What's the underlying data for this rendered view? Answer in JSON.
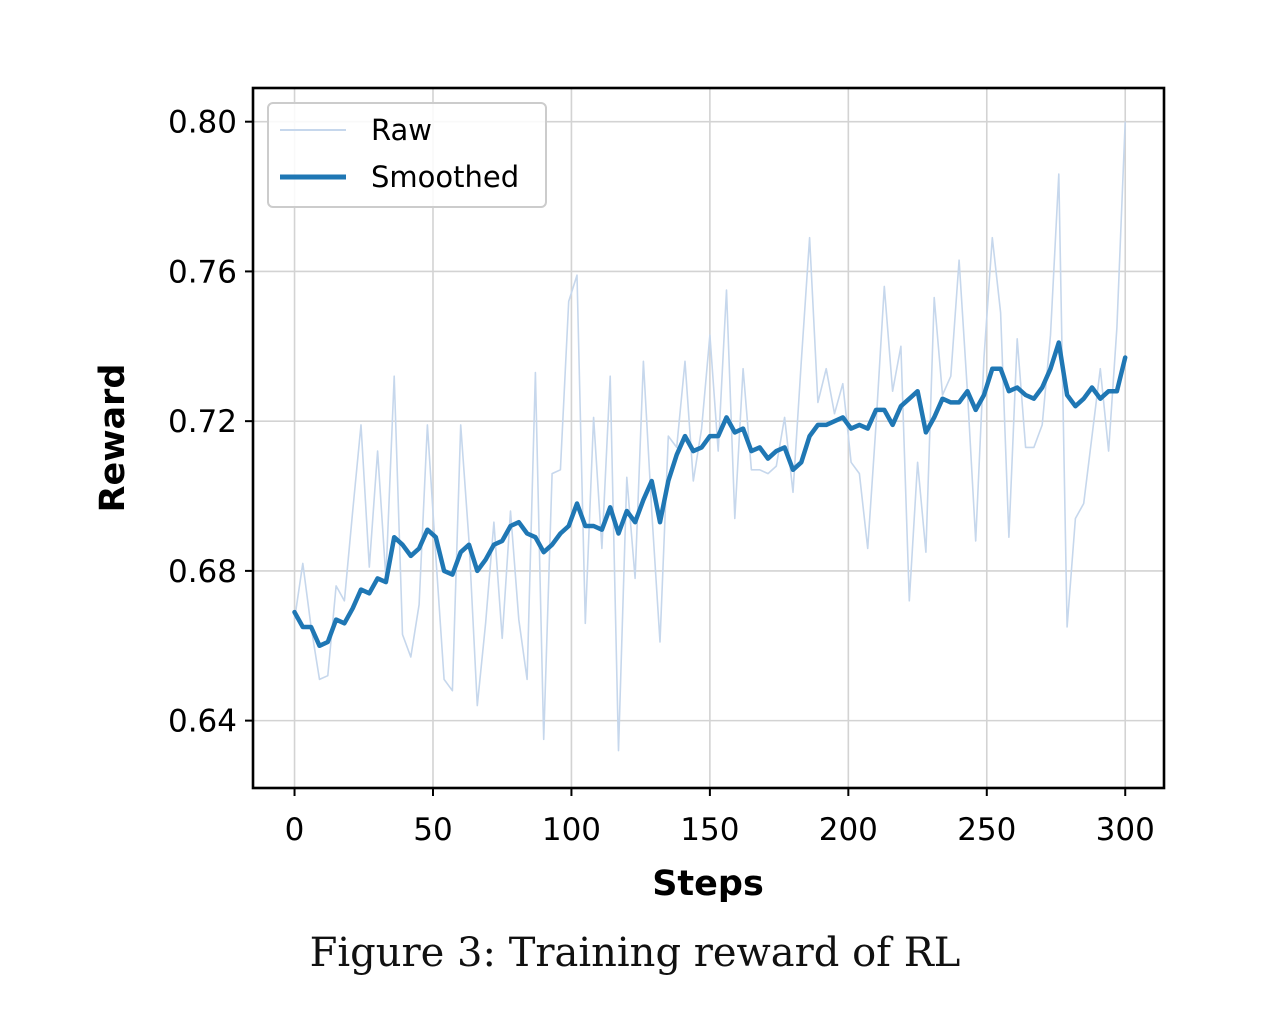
{
  "chart_data": {
    "type": "line",
    "xlabel": "Steps",
    "ylabel": "Reward",
    "xlim": [
      -15,
      314
    ],
    "ylim": [
      0.622,
      0.809
    ],
    "xticks": [
      0,
      50,
      100,
      150,
      200,
      250,
      300
    ],
    "yticks": [
      0.64,
      0.68,
      0.72,
      0.76,
      0.8
    ],
    "xtick_labels": [
      "0",
      "50",
      "100",
      "150",
      "200",
      "250",
      "300"
    ],
    "ytick_labels": [
      "0.64",
      "0.68",
      "0.72",
      "0.76",
      "0.80"
    ],
    "grid": true,
    "legend": {
      "position": "upper-left",
      "entries": [
        "Raw",
        "Smoothed"
      ]
    },
    "colors": {
      "raw": "#c6d7ec",
      "smoothed": "#1f77b4",
      "grid": "#d3d3d3"
    },
    "x": [
      0,
      3,
      6,
      9,
      12,
      15,
      18,
      21,
      24,
      27,
      30,
      33,
      36,
      39,
      42,
      45,
      48,
      51,
      54,
      57,
      60,
      63,
      66,
      69,
      72,
      75,
      78,
      81,
      84,
      87,
      90,
      93,
      96,
      99,
      102,
      105,
      108,
      111,
      114,
      117,
      120,
      123,
      126,
      129,
      132,
      135,
      138,
      141,
      144,
      147,
      150,
      153,
      156,
      159,
      162,
      165,
      168,
      171,
      174,
      177,
      180,
      183,
      186,
      189,
      192,
      195,
      198,
      201,
      204,
      207,
      210,
      213,
      216,
      219,
      222,
      225,
      228,
      231,
      234,
      237,
      240,
      243,
      246,
      249,
      252,
      255,
      258,
      261,
      264,
      267,
      270,
      273,
      276,
      279,
      282,
      285,
      288,
      291,
      294,
      297,
      300
    ],
    "series": [
      {
        "name": "Raw",
        "values": [
          0.667,
          0.682,
          0.665,
          0.651,
          0.652,
          0.676,
          0.672,
          0.696,
          0.719,
          0.681,
          0.712,
          0.678,
          0.732,
          0.663,
          0.657,
          0.671,
          0.719,
          0.684,
          0.651,
          0.648,
          0.719,
          0.688,
          0.644,
          0.666,
          0.693,
          0.662,
          0.696,
          0.667,
          0.651,
          0.733,
          0.635,
          0.706,
          0.707,
          0.752,
          0.759,
          0.666,
          0.721,
          0.686,
          0.732,
          0.632,
          0.705,
          0.678,
          0.736,
          0.696,
          0.661,
          0.716,
          0.713,
          0.736,
          0.704,
          0.718,
          0.743,
          0.712,
          0.755,
          0.694,
          0.734,
          0.707,
          0.707,
          0.706,
          0.708,
          0.721,
          0.701,
          0.736,
          0.769,
          0.725,
          0.734,
          0.722,
          0.73,
          0.709,
          0.706,
          0.686,
          0.719,
          0.756,
          0.728,
          0.74,
          0.672,
          0.709,
          0.685,
          0.753,
          0.727,
          0.732,
          0.763,
          0.728,
          0.688,
          0.737,
          0.769,
          0.749,
          0.689,
          0.742,
          0.713,
          0.713,
          0.719,
          0.743,
          0.786,
          0.665,
          0.694,
          0.698,
          0.716,
          0.734,
          0.712,
          0.745,
          0.8
        ]
      },
      {
        "name": "Smoothed",
        "values": [
          0.669,
          0.665,
          0.665,
          0.66,
          0.661,
          0.667,
          0.666,
          0.67,
          0.675,
          0.674,
          0.678,
          0.677,
          0.689,
          0.687,
          0.684,
          0.686,
          0.691,
          0.689,
          0.68,
          0.679,
          0.685,
          0.687,
          0.68,
          0.683,
          0.687,
          0.688,
          0.692,
          0.693,
          0.69,
          0.689,
          0.685,
          0.687,
          0.69,
          0.692,
          0.698,
          0.692,
          0.692,
          0.691,
          0.697,
          0.69,
          0.696,
          0.693,
          0.699,
          0.704,
          0.693,
          0.704,
          0.711,
          0.716,
          0.712,
          0.713,
          0.716,
          0.716,
          0.721,
          0.717,
          0.718,
          0.712,
          0.713,
          0.71,
          0.712,
          0.713,
          0.707,
          0.709,
          0.716,
          0.719,
          0.719,
          0.72,
          0.721,
          0.718,
          0.719,
          0.718,
          0.723,
          0.723,
          0.719,
          0.724,
          0.726,
          0.728,
          0.717,
          0.721,
          0.726,
          0.725,
          0.725,
          0.728,
          0.723,
          0.727,
          0.734,
          0.734,
          0.728,
          0.729,
          0.727,
          0.726,
          0.729,
          0.734,
          0.741,
          0.727,
          0.724,
          0.726,
          0.729,
          0.726,
          0.728,
          0.728,
          0.737
        ]
      }
    ]
  },
  "caption": "Figure 3: Training reward of RL"
}
